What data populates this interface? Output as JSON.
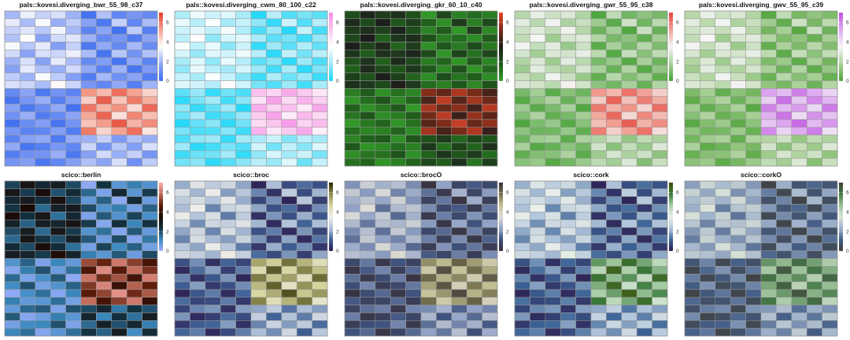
{
  "chart_data": {
    "type": "heatmap",
    "rows": 20,
    "cols": 10,
    "values": [
      [
        2.1,
        3.2,
        2.6,
        2.9,
        2.0,
        0.2,
        2.3,
        0.8,
        1.3,
        0.9
      ],
      [
        3.1,
        2.2,
        3.4,
        1.9,
        2.5,
        1.6,
        0.4,
        2.6,
        0.8,
        2.2
      ],
      [
        2.6,
        3.0,
        2.4,
        3.3,
        2.1,
        0.7,
        1.7,
        0.2,
        2.5,
        0.6
      ],
      [
        2.3,
        3.5,
        1.6,
        2.8,
        3.0,
        2.0,
        0.9,
        1.3,
        0.5,
        1.7
      ],
      [
        3.4,
        2.4,
        3.1,
        1.5,
        2.6,
        0.4,
        1.8,
        0.9,
        2.1,
        1.0
      ],
      [
        2.8,
        1.7,
        2.9,
        2.7,
        3.2,
        2.2,
        0.3,
        2.4,
        1.2,
        2.3
      ],
      [
        2.0,
        2.9,
        1.6,
        3.1,
        2.2,
        0.9,
        1.5,
        0.3,
        1.8,
        0.7
      ],
      [
        1.6,
        3.1,
        2.3,
        1.9,
        2.8,
        1.8,
        0.6,
        2.0,
        0.3,
        1.4
      ],
      [
        2.5,
        2.0,
        3.4,
        2.5,
        1.5,
        0.5,
        2.1,
        1.1,
        1.7,
        0.5
      ],
      [
        2.9,
        2.7,
        2.2,
        3.6,
        2.7,
        1.3,
        0.8,
        1.8,
        0.6,
        2.0
      ],
      [
        0.9,
        1.7,
        0.4,
        1.2,
        0.7,
        5.4,
        4.8,
        6.1,
        5.2,
        4.3
      ],
      [
        0.3,
        1.3,
        1.9,
        0.6,
        1.5,
        4.4,
        6.4,
        4.6,
        5.9,
        5.0
      ],
      [
        1.6,
        0.4,
        1.0,
        1.8,
        0.2,
        6.0,
        4.9,
        5.5,
        4.2,
        6.2
      ],
      [
        1.1,
        1.9,
        0.5,
        0.9,
        1.7,
        5.1,
        6.3,
        4.1,
        5.7,
        4.7
      ],
      [
        0.2,
        1.0,
        1.5,
        0.3,
        1.2,
        4.6,
        5.3,
        6.5,
        4.9,
        5.6
      ],
      [
        1.3,
        0.7,
        0.8,
        1.5,
        0.5,
        5.9,
        4.3,
        5.2,
        6.1,
        4.0
      ],
      [
        0.7,
        1.6,
        1.8,
        0.4,
        1.9,
        2.0,
        2.6,
        1.4,
        2.3,
        1.9
      ],
      [
        1.8,
        0.3,
        0.6,
        1.3,
        0.8,
        2.7,
        1.2,
        2.4,
        1.5,
        2.9
      ],
      [
        0.5,
        1.1,
        1.2,
        1.9,
        0.4,
        1.6,
        2.8,
        1.9,
        2.6,
        1.3
      ],
      [
        1.2,
        1.5,
        0.3,
        0.8,
        1.5,
        2.3,
        1.7,
        2.9,
        1.1,
        2.5
      ]
    ],
    "value_range": [
      0,
      7
    ],
    "legend_ticks": [
      0,
      2,
      4,
      6
    ],
    "panels": [
      {
        "title": "pals::kovesi.diverging_bwr_55_98_c37",
        "palette": [
          "#3a6cf0",
          "#8ea6f6",
          "#ffffff",
          "#f5a08f",
          "#e63c2a"
        ]
      },
      {
        "title": "pals::kovesi.diverging_cwm_80_100_c22",
        "palette": [
          "#17d7f9",
          "#9be8f8",
          "#ffffff",
          "#fac8ef",
          "#f58ce6"
        ]
      },
      {
        "title": "pals::kovesi.diverging_gkr_60_10_c40",
        "palette": [
          "#34a02a",
          "#1f5a1b",
          "#1c1c1c",
          "#7a2b18",
          "#e3452b"
        ]
      },
      {
        "title": "pals::kovesi.diverging_gwr_55_95_c38",
        "palette": [
          "#45a235",
          "#a6cf98",
          "#f5f5f5",
          "#f2a195",
          "#e5433a"
        ]
      },
      {
        "title": "pals::kovesi.diverging_gwv_55_95_c39",
        "palette": [
          "#4fa43a",
          "#a8d096",
          "#f5f5f5",
          "#ddaaf0",
          "#bf52e0"
        ]
      },
      {
        "title": "scico::berlin",
        "palette": [
          "#9eb0ff",
          "#3b8ac0",
          "#12303f",
          "#1a0a06",
          "#5b1a08",
          "#c06a58",
          "#ffacac"
        ]
      },
      {
        "title": "scico::broc",
        "palette": [
          "#2c1a4c",
          "#3f6196",
          "#afc1d9",
          "#eeeeea",
          "#d7d59f",
          "#8c8a4f",
          "#262600"
        ]
      },
      {
        "title": "scico::brocO",
        "palette": [
          "#372e39",
          "#3d517c",
          "#93a4c8",
          "#dcdcd8",
          "#c4c195",
          "#75704b",
          "#372e39"
        ]
      },
      {
        "title": "scico::cork",
        "palette": [
          "#2c1a4c",
          "#3c6497",
          "#b0c4db",
          "#eaf0ea",
          "#a6cda5",
          "#397a3b",
          "#434c03"
        ]
      },
      {
        "title": "scico::corkO",
        "palette": [
          "#3f3e3a",
          "#445e87",
          "#9eb1cc",
          "#d9e3d9",
          "#99c095",
          "#467948",
          "#3f3e3a"
        ]
      }
    ]
  }
}
